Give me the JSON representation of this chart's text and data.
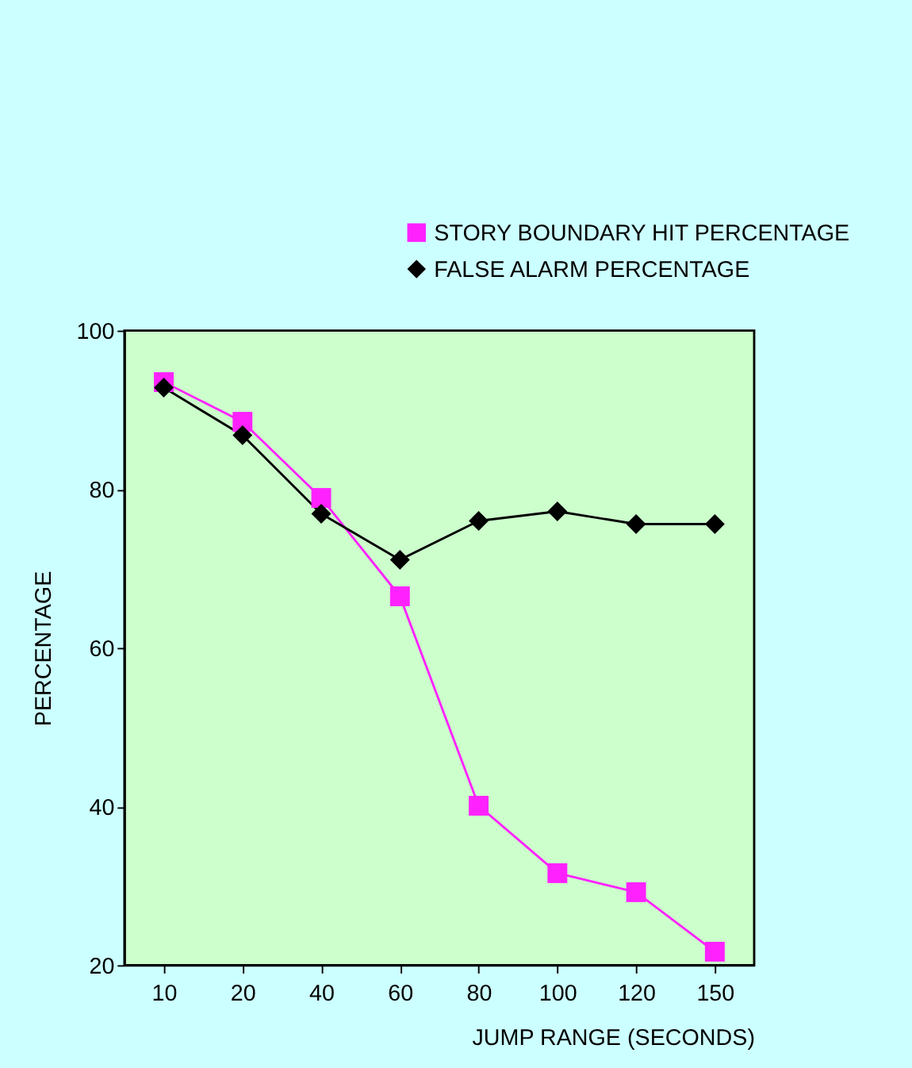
{
  "chart_data": {
    "type": "line",
    "xlabel": "JUMP RANGE (SECONDS)",
    "ylabel": "PERCENTAGE",
    "categories": [
      "10",
      "20",
      "40",
      "60",
      "80",
      "100",
      "120",
      "150"
    ],
    "series": [
      {
        "name": "STORY BOUNDARY HIT PERCENTAGE",
        "color": "#ff22ff",
        "marker": "square",
        "values": [
          93.5,
          88.5,
          78.9,
          66.5,
          40.1,
          31.6,
          29.2,
          21.7
        ]
      },
      {
        "name": "FALSE ALARM PERCENTAGE",
        "color": "#000000",
        "marker": "diamond",
        "values": [
          92.8,
          86.8,
          76.9,
          71.1,
          76.0,
          77.2,
          75.6,
          75.6
        ]
      }
    ],
    "ylim": [
      20,
      100
    ],
    "yticks": [
      20,
      40,
      60,
      80,
      100
    ],
    "grid": false,
    "legend": "top right",
    "line_style": "solid"
  }
}
